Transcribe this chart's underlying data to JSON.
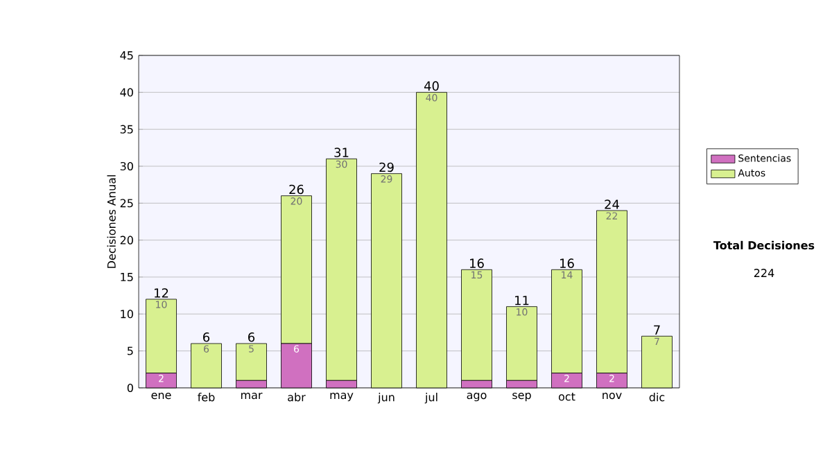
{
  "chart_data": {
    "type": "bar",
    "stacked": true,
    "ylabel": "Decisiones Anual",
    "categories": [
      "ene",
      "feb",
      "mar",
      "abr",
      "may",
      "jun",
      "jul",
      "ago",
      "sep",
      "oct",
      "nov",
      "dic"
    ],
    "series": [
      {
        "name": "Sentencias",
        "color": "#d070c0",
        "values": [
          2,
          0,
          1,
          6,
          1,
          0,
          0,
          1,
          1,
          2,
          2,
          0
        ],
        "value_labels": [
          "2",
          null,
          null,
          "6",
          null,
          null,
          null,
          null,
          null,
          "2",
          "2",
          null
        ]
      },
      {
        "name": "Autos",
        "color": "#d8f090",
        "values": [
          10,
          6,
          5,
          20,
          30,
          29,
          40,
          15,
          10,
          14,
          22,
          7
        ],
        "value_labels": [
          "10",
          "6",
          "5",
          "20",
          "30",
          "29",
          "40",
          "15",
          "10",
          "14",
          "22",
          "7"
        ]
      }
    ],
    "totals": [
      "12",
      "6",
      "6",
      "26",
      "31",
      "29",
      "40",
      "16",
      "11",
      "16",
      "24",
      "7"
    ],
    "ylim": [
      0,
      45
    ],
    "yticks": [
      0,
      5,
      10,
      15,
      20,
      25,
      30,
      35,
      40,
      45
    ],
    "grid": "y",
    "legend": "right",
    "annotations": [
      "Total Decisiones",
      "224"
    ]
  }
}
